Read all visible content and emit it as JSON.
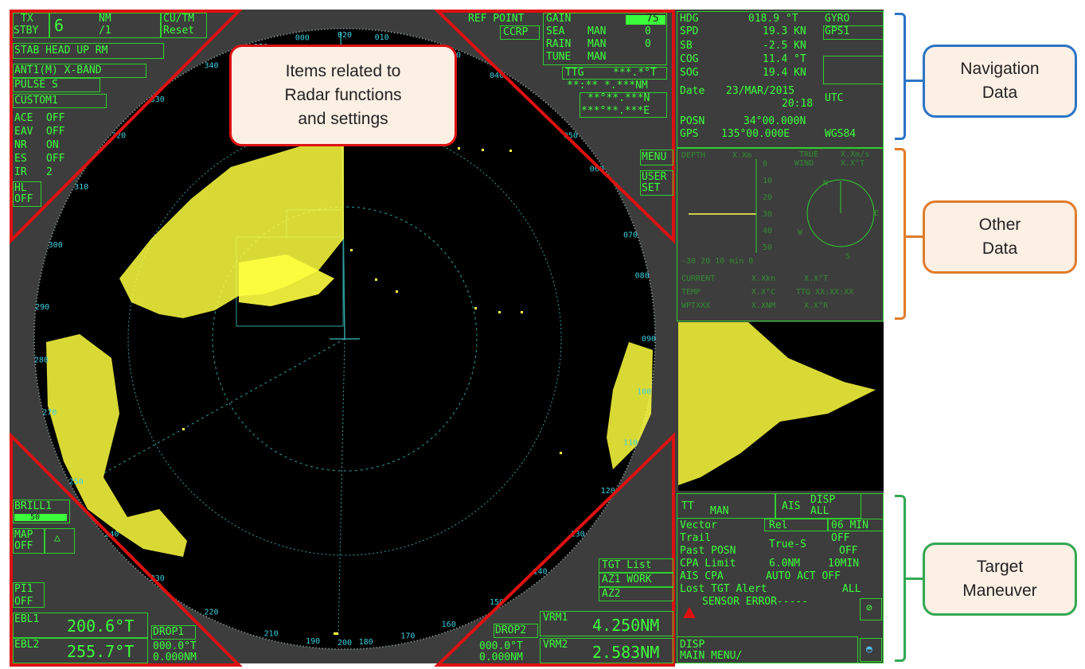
{
  "colors": {
    "screen": "#3d3d3d",
    "green": "#3cff3c",
    "cyan": "#33d6d6",
    "echo": "#ffff40",
    "triangle": "#dd1111",
    "nav": "#2a74c4",
    "other": "#e07b2a",
    "target": "#32a852"
  },
  "callouts": {
    "radar": [
      "Items related to",
      "Radar functions",
      "and settings"
    ],
    "nav": [
      "Navigation",
      "Data"
    ],
    "other": [
      "Other",
      "Data"
    ],
    "target": [
      "Target",
      "Maneuver"
    ]
  },
  "topleft": {
    "tx": "TX",
    "stby": "STBY",
    "range": "6",
    "nm": "NM",
    "ring": "/1",
    "cu": "CU/TM",
    "reset": "Reset",
    "mode": "STAB HEAD UP RM",
    "ant": "ANT1(M) X-BAND",
    "pulse": "PULSE S",
    "custom": "CUSTOM1",
    "rows": [
      [
        "ACE",
        "OFF"
      ],
      [
        "EAV",
        "OFF"
      ],
      [
        "NR",
        "ON"
      ],
      [
        "ES",
        "OFF"
      ],
      [
        "IR",
        "2"
      ]
    ],
    "hl": "HL",
    "hl_off": "OFF"
  },
  "topright": {
    "ref": "REF POINT",
    "ccrp": "CCRP",
    "gain": "GAIN",
    "gain_val": "75",
    "sea": "SEA",
    "sea_mode": "MAN",
    "sea_val": "0",
    "rain": "RAIN",
    "rain_mode": "MAN",
    "rain_val": "0",
    "tune": "TUNE",
    "tune_mode": "MAN",
    "ttg": "TTG",
    "ttg_v": "***.*°T",
    "r2": "**:** *.***NM",
    "r3": "**°**.***N",
    "r4": "***°**.***E",
    "menu": "MENU",
    "user": "USER",
    "set": "SET"
  },
  "bottomleft": {
    "brill": "BRILL1",
    "brill_val": "50",
    "map": "MAP",
    "map_off": "OFF",
    "pi": "PI1",
    "pi_off": "OFF",
    "ebl1": "EBL1",
    "ebl1_val": "200.6°T",
    "ebl2": "EBL2",
    "ebl2_val": "255.7°T",
    "drop1": "DROP1",
    "drop1_a": "000.0°T",
    "drop1_b": "0.000NM"
  },
  "bottomright": {
    "tgt": "TGT List",
    "az1": "AZ1 WORK",
    "az2": "AZ2",
    "drop2": "DROP2",
    "drop2_a": "000.0°T",
    "drop2_b": "0.000NM",
    "vrm1": "VRM1",
    "vrm1_val": "4.250NM",
    "vrm2": "VRM2",
    "vrm2_val": "2.583NM"
  },
  "nav": {
    "hdg": "HDG",
    "hdg_v": "018.9 °T",
    "gyro": "GYRO",
    "spd": "SPD",
    "spd_v": "19.3 KN",
    "gps1": "GPS1",
    "sb": "SB",
    "sb_v": "-2.5 KN",
    "cog": "COG",
    "cog_v": "11.4 °T",
    "sog": "SOG",
    "sog_v": "19.4 KN",
    "date_l": "Date",
    "date": "23/MAR/2015",
    "time": "20:18",
    "utc": "UTC",
    "posn": "POSN",
    "lat": "34°00.000N",
    "gps": "GPS",
    "lon": "135°00.000E",
    "wgs": "WGS84"
  },
  "other": {
    "depth": "DEPTH",
    "depth_v": "X.Xm",
    "true": "TRUE",
    "wind": "WIND",
    "wind_v1": "X.Xm/s",
    "wind_v2": "X.X°T",
    "scale": [
      "0",
      "10",
      "20",
      "30",
      "40",
      "50"
    ],
    "xaxis": "-30 20 10 min 0",
    "n": "N",
    "e": "E",
    "s": "S",
    "w": "W",
    "current": "CURRENT",
    "current_v1": "X.Xkn",
    "current_v2": "X.X°T",
    "temp": "TEMP",
    "temp_v": "X.X°C",
    "ttg": "TTG XX:XX:XX",
    "wpt": "WPTXXX",
    "wpt_v": "X.XNM",
    "wpt_v2": "X.X°R"
  },
  "target": {
    "tt": "TT",
    "man": "MAN",
    "ais": "AIS",
    "disp": "DISP",
    "all": "ALL",
    "vector": "Vector",
    "rel": "Rel",
    "min6": "06 MIN",
    "trail": "Trail",
    "off1": "OFF",
    "trues": "True-S",
    "past": "Past POSN",
    "off2": "OFF",
    "cpa": "CPA Limit",
    "cpa_v": "6.0NM",
    "min10": "10MIN",
    "aiscpa": "AIS CPA",
    "auto": "AUTO ACT OFF",
    "lost": "Lost TGT Alert",
    "all2": "ALL",
    "sensor": "SENSOR ERROR-----",
    "disp2": "DISP",
    "mainmenu": "MAIN MENU/"
  },
  "bearings": [
    {
      "t": "000",
      "a": -8
    },
    {
      "t": "010",
      "a": 7
    },
    {
      "t": "020",
      "a": 0
    },
    {
      "t": "030",
      "a": 21
    },
    {
      "t": "040",
      "a": 30
    },
    {
      "t": "050",
      "a": 48
    },
    {
      "t": "060",
      "a": 56
    },
    {
      "t": "070",
      "a": 70
    },
    {
      "t": "080",
      "a": 78
    },
    {
      "t": "090",
      "a": 90
    },
    {
      "t": "100",
      "a": 100
    },
    {
      "t": "110",
      "a": 110
    },
    {
      "t": "120",
      "a": 120
    },
    {
      "t": "130",
      "a": 130
    },
    {
      "t": "140",
      "a": 140
    },
    {
      "t": "150",
      "a": 150
    },
    {
      "t": "160",
      "a": 160
    },
    {
      "t": "170",
      "a": 168
    },
    {
      "t": "180",
      "a": 176
    },
    {
      "t": "190",
      "a": 186
    },
    {
      "t": "200",
      "a": 180
    },
    {
      "t": "210",
      "a": 194
    },
    {
      "t": "220",
      "a": 206
    },
    {
      "t": "230",
      "a": 218
    },
    {
      "t": "240",
      "a": 230
    },
    {
      "t": "250",
      "a": 242
    },
    {
      "t": "270",
      "a": 256
    },
    {
      "t": "280",
      "a": 266
    },
    {
      "t": "290",
      "a": 276
    },
    {
      "t": "300",
      "a": 288
    },
    {
      "t": "310",
      "a": 300
    },
    {
      "t": "320",
      "a": 312
    },
    {
      "t": "330",
      "a": 322
    },
    {
      "t": "340",
      "a": 334
    },
    {
      "t": "350",
      "a": 344
    }
  ]
}
